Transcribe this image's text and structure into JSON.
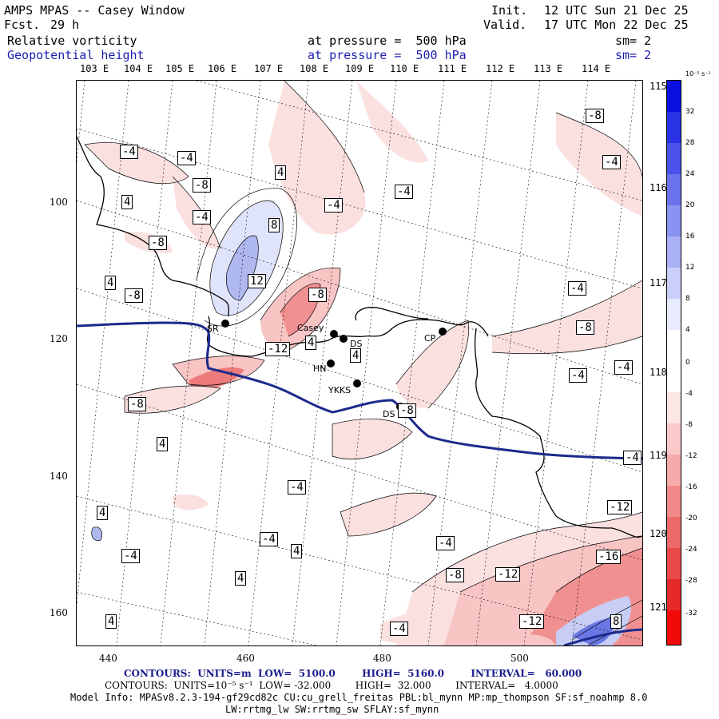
{
  "header": {
    "title": "AMPS MPAS -- Casey Window",
    "fcst_label": "Fcst.",
    "fcst_value": "29 h",
    "init_label": "Init.",
    "init_value": "12 UTC Sun 21 Dec 25",
    "valid_label": "Valid.",
    "valid_value": "17 UTC Mon 22 Dec 25",
    "field1_name": "Relative vorticity",
    "field1_level": "at pressure =  500 hPa",
    "field1_sm": "sm= 2",
    "field2_name": "Geopotential height",
    "field2_level": "at pressure =  500 hPa",
    "field2_sm": "sm= 2"
  },
  "top_lon_labels": [
    "103 E",
    "104 E",
    "105 E",
    "106 E",
    "107 E",
    "108 E",
    "109 E",
    "110 E",
    "111 E",
    "112 E",
    "113 E",
    "114 E"
  ],
  "right_lon_labels": [
    "115 E",
    "116 E",
    "117 E",
    "118 E",
    "119 E",
    "120 E",
    "121 E"
  ],
  "left_axis_ticks": [
    "100",
    "120",
    "140",
    "160"
  ],
  "bottom_axis_ticks": [
    "440",
    "460",
    "480",
    "500"
  ],
  "colorbar": {
    "unit_label": "10⁻⁵ s⁻¹",
    "tick_labels": [
      "32",
      "28",
      "24",
      "20",
      "16",
      "12",
      "8",
      "4",
      "0",
      "-4",
      "-8",
      "-12",
      "-16",
      "-20",
      "-24",
      "-28",
      "-32"
    ]
  },
  "contour_labels": [
    "-4",
    "-4",
    "-8",
    "-4",
    "-8",
    "4",
    "4",
    "-4",
    "-4",
    "-8",
    "-4",
    "8",
    "12",
    "-8",
    "-12",
    "4",
    "4",
    "-8",
    "-4",
    "-8",
    "-4",
    "-4",
    "-4",
    "-8",
    "4",
    "4",
    "-4",
    "-4",
    "4",
    "-4",
    "4",
    "-4",
    "4",
    "-4",
    "-8",
    "-12",
    "-12",
    "-16",
    "-12",
    "8",
    "4",
    "-8"
  ],
  "stations": {
    "sr": "SR",
    "casey": "Casey",
    "ds1": "DS",
    "hn": "HN",
    "ykks": "YKKS",
    "ds2": "DS",
    "cp": "CP"
  },
  "footer": {
    "contours1": "CONTOURS:  UNITS=m  LOW=  5100.0        HIGH=  5160.0        INTERVAL=   60.000",
    "contours2": "CONTOURS:  UNITS=10⁻⁵ s⁻¹  LOW= -32.000        HIGH=  32.000        INTERVAL=   4.0000",
    "model_info": "Model Info: MPASv8.2.3-194-gf29cd82c CU:cu_grell_freitas PBL:bl_mynn MP:mp_thompson SF:sf_noahmp 8.0",
    "model_info2": "LW:rrtmg_lw SW:rrtmg_sw SFLAY:sf_mynn"
  },
  "colors": {
    "positive": "#1f1fd9",
    "negative": "#e82020",
    "geopotential": "#1c2a8c"
  }
}
